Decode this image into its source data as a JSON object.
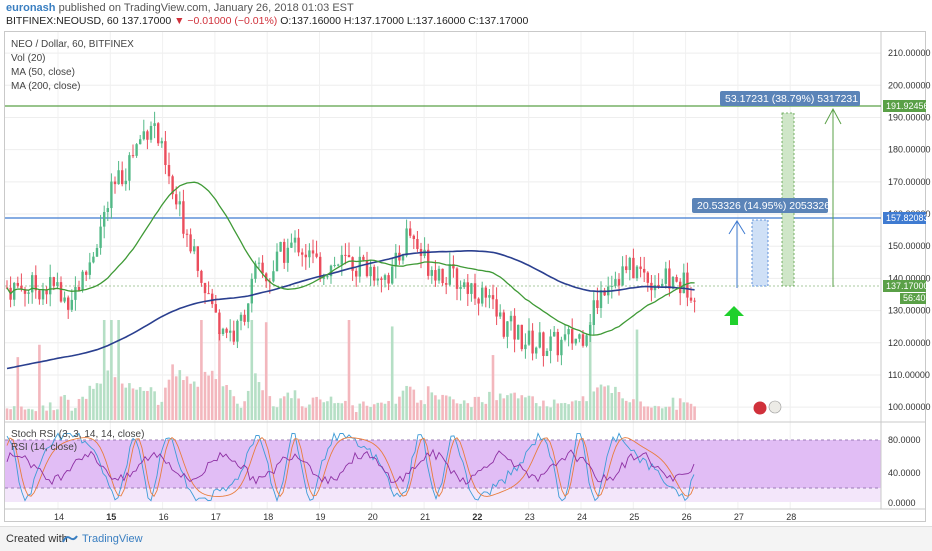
{
  "header": {
    "user": "euronash",
    "published": " published on TradingView.com, January 26, 2018 01:03 EST",
    "symbol": "BITFINEX:NEOUSD, 60",
    "last": "137.17000",
    "change": "▼ −0.01000 (−0.01%)",
    "ohlc": "O:137.16000 H:137.17000 L:137.16000 C:137.17000"
  },
  "legend": {
    "title": "NEO / Dollar, 60, BITFINEX",
    "vol": "Vol (20)",
    "ma50": "MA (50, close)",
    "ma200": "MA (200, close)"
  },
  "rsi_legend": {
    "stoch": "Stoch RSI (3, 3, 14, 14, close)",
    "rsi": "RSI (14, close)"
  },
  "colors": {
    "up": "#53b987",
    "down": "#eb4d5c",
    "ma50": "#3f9a36",
    "ma200": "#2a3f8f",
    "hline_green": "#5aa047",
    "hline_blue": "#3f7bd1",
    "price_tag": "#5aa047",
    "rsi_bg": "#e1bdf5"
  },
  "price_scale_labels": [
    "210.00000",
    "200.00000",
    "190.00000",
    "180.00000",
    "170.00000",
    "160.00000",
    "150.00000",
    "140.00000",
    "130.00000",
    "120.00000",
    "110.00000",
    "100.00000"
  ],
  "rsi_scale_labels": [
    "80.0000",
    "40.0000",
    "0.0000"
  ],
  "time_labels": [
    "14",
    "15",
    "16",
    "17",
    "18",
    "19",
    "20",
    "21",
    "22",
    "23",
    "24",
    "25",
    "26",
    "27",
    "28"
  ],
  "tags": {
    "top_line": "191.92456",
    "blue_line": "157.82083",
    "last_price": "137.17000",
    "countdown": "56:40"
  },
  "measures": {
    "big": "53.17231 (38.79%) 5317231",
    "small": "20.53326 (14.95%) 2053326"
  },
  "footer": {
    "created": "Created with",
    "brand": "TradingView"
  },
  "chart_data": {
    "type": "candlestick",
    "symbol": "BITFINEX:NEOUSD",
    "interval": "60",
    "ylim": [
      96,
      215
    ],
    "horizontal_lines": [
      191.92456,
      157.82083
    ],
    "current_price": 137.17,
    "x_ticks": [
      "14",
      "15",
      "16",
      "17",
      "18",
      "19",
      "20",
      "21",
      "22",
      "23",
      "24",
      "25",
      "26",
      "27",
      "28"
    ],
    "indicators": [
      "Vol (20)",
      "MA (50, close)",
      "MA (200, close)",
      "Stoch RSI (3, 3, 14, 14, close)",
      "RSI (14, close)"
    ],
    "close_path": [
      {
        "x": "14",
        "y": 131
      },
      {
        "x": "14.5",
        "y": 140
      },
      {
        "x": "15",
        "y": 165
      },
      {
        "x": "15.4",
        "y": 178
      },
      {
        "x": "15.8",
        "y": 190
      },
      {
        "x": "16.2",
        "y": 165
      },
      {
        "x": "16.6",
        "y": 150
      },
      {
        "x": "17",
        "y": 128
      },
      {
        "x": "17.4",
        "y": 122
      },
      {
        "x": "17.8",
        "y": 142
      },
      {
        "x": "18",
        "y": 140
      },
      {
        "x": "18.3",
        "y": 148
      },
      {
        "x": "18.6",
        "y": 151
      },
      {
        "x": "19",
        "y": 143
      },
      {
        "x": "19.5",
        "y": 145
      },
      {
        "x": "20",
        "y": 143
      },
      {
        "x": "20.4",
        "y": 141
      },
      {
        "x": "20.7",
        "y": 155
      },
      {
        "x": "21",
        "y": 146
      },
      {
        "x": "21.5",
        "y": 140
      },
      {
        "x": "22",
        "y": 137
      },
      {
        "x": "22.5",
        "y": 126
      },
      {
        "x": "23",
        "y": 120
      },
      {
        "x": "23.5",
        "y": 119
      },
      {
        "x": "24",
        "y": 122
      },
      {
        "x": "24.5",
        "y": 140
      },
      {
        "x": "25",
        "y": 143
      },
      {
        "x": "25.5",
        "y": 139
      },
      {
        "x": "26",
        "y": 138
      },
      {
        "x": "26.2",
        "y": 137.17
      }
    ],
    "rsi_bands": [
      80,
      20
    ]
  }
}
